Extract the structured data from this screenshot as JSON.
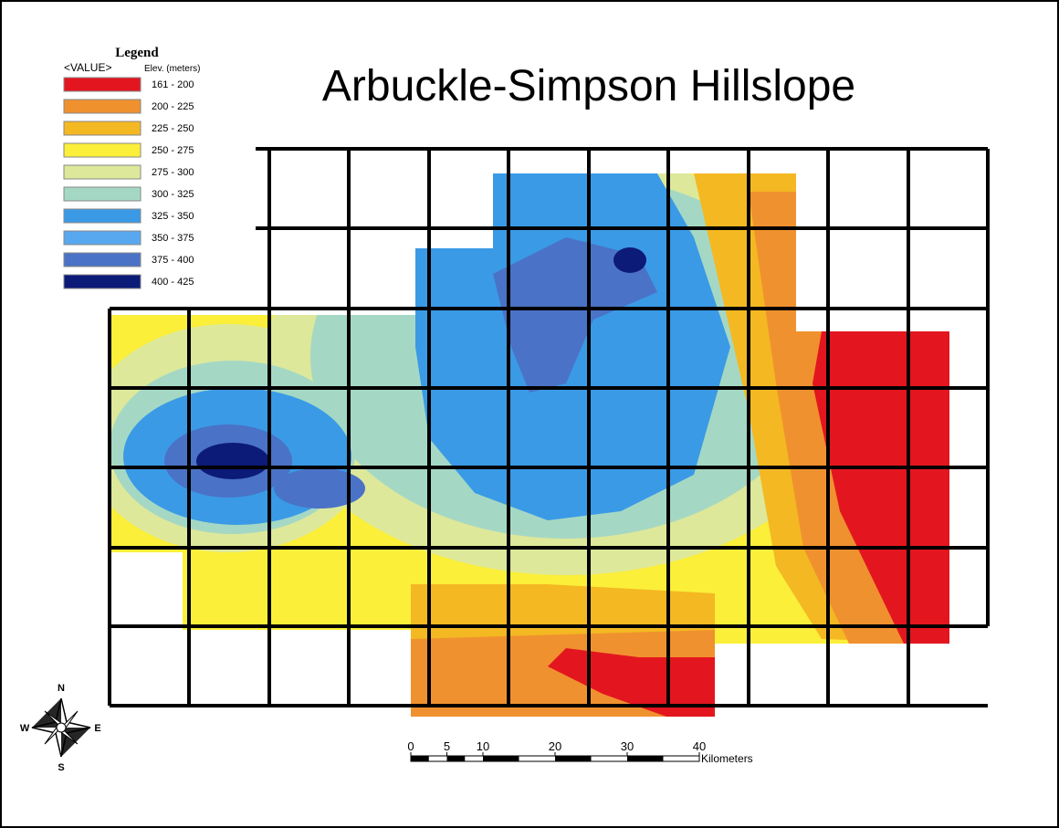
{
  "title": "Arbuckle-Simpson Hillslope",
  "legend": {
    "title": "Legend",
    "field": "<VALUE>",
    "unit": "Elev. (meters)",
    "items": [
      {
        "label": "161 - 200",
        "color": "#e3161f"
      },
      {
        "label": "200 - 225",
        "color": "#f0912f"
      },
      {
        "label": "225 - 250",
        "color": "#f4b822"
      },
      {
        "label": "250 - 275",
        "color": "#fbef3a"
      },
      {
        "label": "275 - 300",
        "color": "#dde89a"
      },
      {
        "label": "300 - 325",
        "color": "#a5d8c4"
      },
      {
        "label": "325 - 350",
        "color": "#3a9ae6"
      },
      {
        "label": "350 - 375",
        "color": "#58a8ef"
      },
      {
        "label": "375 - 400",
        "color": "#4a72c6"
      },
      {
        "label": "400 - 425",
        "color": "#0c1a78"
      }
    ]
  },
  "compass": {
    "n": "N",
    "s": "S",
    "w": "W",
    "e": "E"
  },
  "scale_bar": {
    "ticks": [
      0,
      5,
      10,
      20,
      30,
      40
    ],
    "unit": "Kilometers"
  }
}
